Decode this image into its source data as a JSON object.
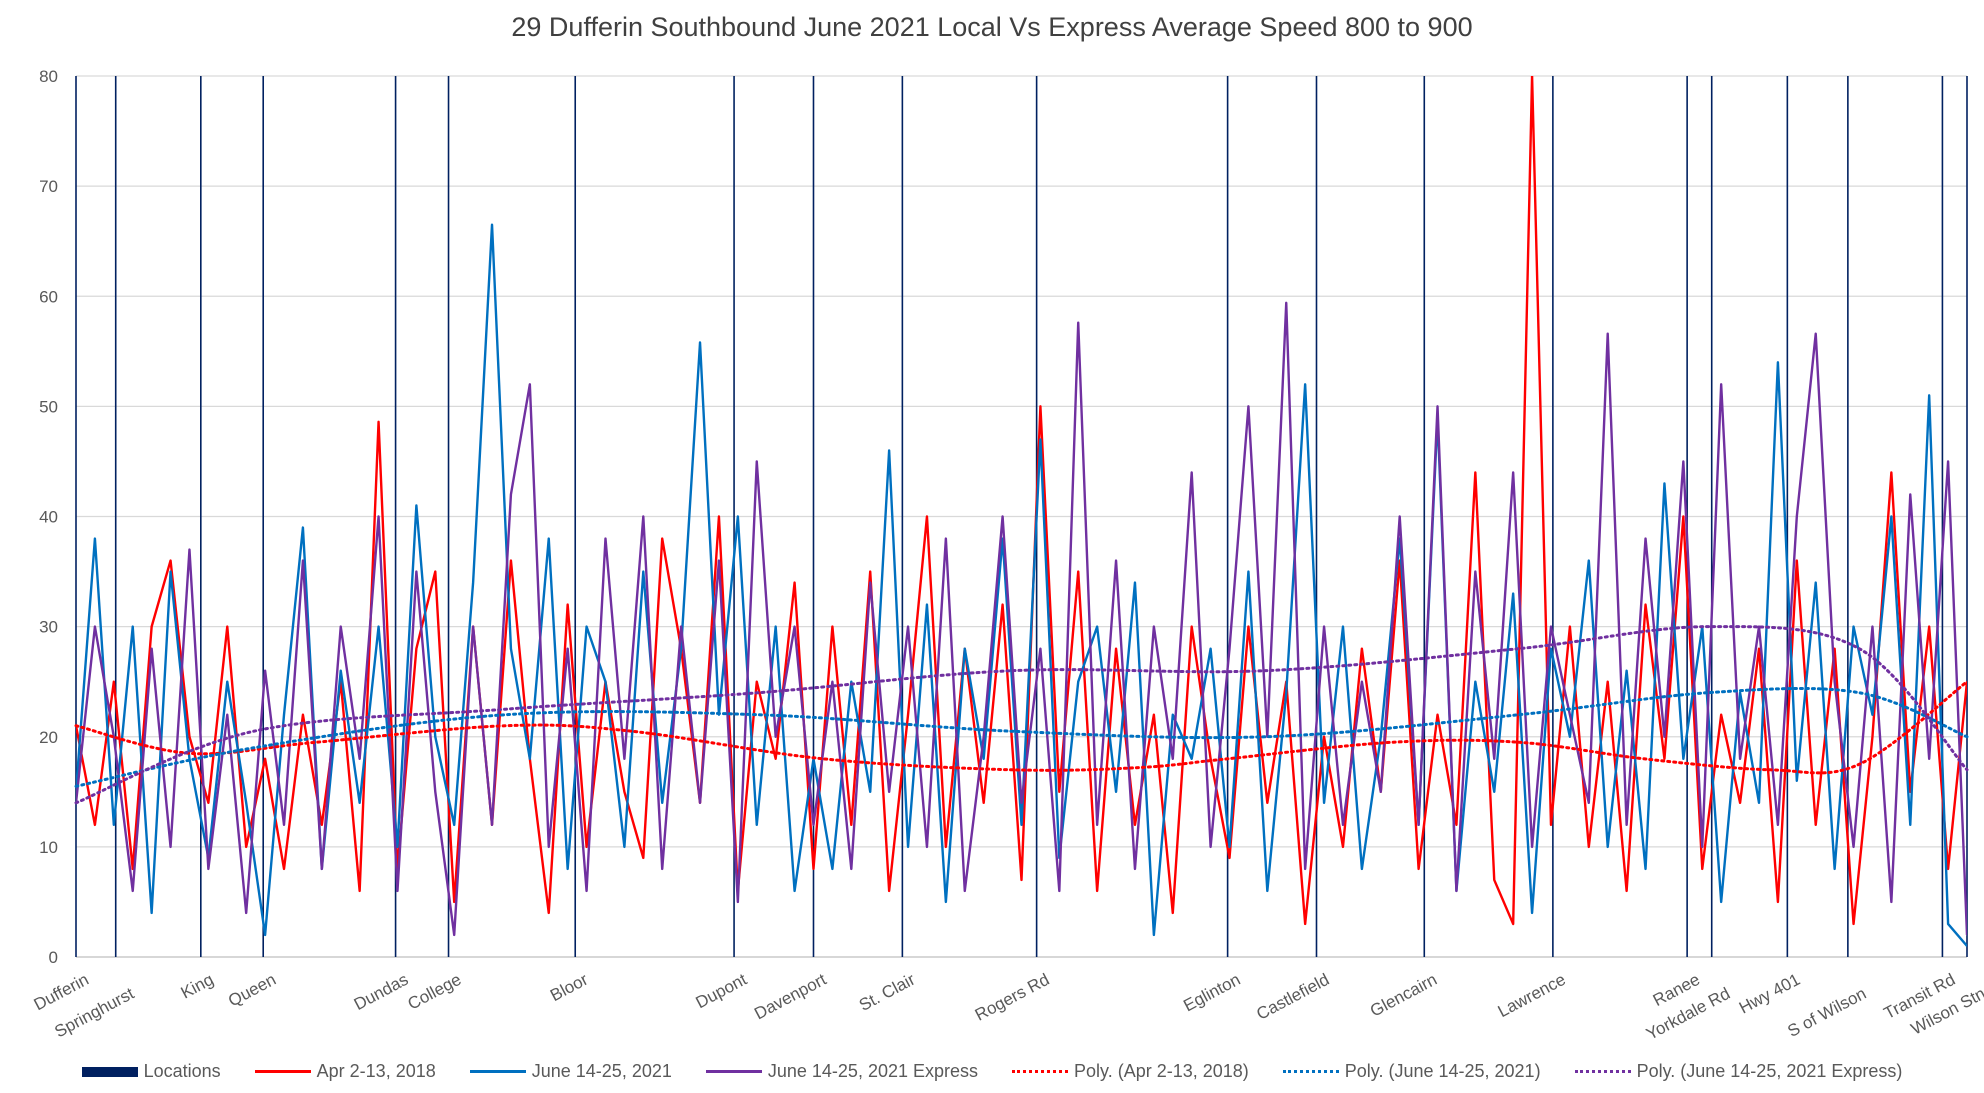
{
  "chart_data": {
    "type": "line",
    "title": "29 Dufferin Southbound June 2021 Local Vs Express Average Speed 800 to 900",
    "xlabel": "",
    "ylabel": "",
    "xlim": [
      0,
      1000
    ],
    "ylim": [
      0,
      80
    ],
    "yticks": [
      0,
      10,
      20,
      30,
      40,
      50,
      60,
      70,
      80
    ],
    "grid": true,
    "legend_position": "bottom",
    "locations": [
      {
        "label": "Dufferin",
        "x": 0
      },
      {
        "label": "Springhurst",
        "x": 21
      },
      {
        "label": "King",
        "x": 66
      },
      {
        "label": "Queen",
        "x": 99
      },
      {
        "label": "Dundas",
        "x": 169
      },
      {
        "label": "College",
        "x": 197
      },
      {
        "label": "Bloor",
        "x": 264
      },
      {
        "label": "Dupont",
        "x": 348
      },
      {
        "label": "Davenport",
        "x": 390
      },
      {
        "label": "St. Clair",
        "x": 437
      },
      {
        "label": "Rogers Rd",
        "x": 508
      },
      {
        "label": "Eglinton",
        "x": 609
      },
      {
        "label": "Castlefield",
        "x": 656
      },
      {
        "label": "Glencairn",
        "x": 713
      },
      {
        "label": "Lawrence",
        "x": 781
      },
      {
        "label": "Ranee",
        "x": 852
      },
      {
        "label": "Yorkdale Rd",
        "x": 865
      },
      {
        "label": "Hwy 401",
        "x": 905
      },
      {
        "label": "S of Wilson",
        "x": 937
      },
      {
        "label": "Transit Rd",
        "x": 987
      },
      {
        "label": "Wilson Stn",
        "x": 1000
      }
    ],
    "x_step": 10,
    "series": [
      {
        "name": "Apr 2-13, 2018",
        "color": "#ff0000",
        "values": [
          21,
          12,
          25,
          8,
          30,
          36,
          20,
          14,
          30,
          10,
          18,
          8,
          22,
          12,
          25,
          6,
          48.6,
          8,
          28,
          35,
          5,
          30,
          12,
          36,
          18,
          4,
          32,
          10,
          25,
          15,
          9,
          38,
          28,
          14,
          40,
          6,
          25,
          18,
          34,
          8,
          30,
          12,
          35,
          6,
          22,
          40,
          10,
          28,
          14,
          32,
          7,
          50,
          15,
          35,
          6,
          28,
          12,
          22,
          4,
          30,
          18,
          9,
          30,
          14,
          25,
          3,
          20,
          10,
          28,
          15,
          36,
          8,
          22,
          12,
          44,
          7,
          3,
          80,
          12,
          30,
          10,
          25,
          6,
          32,
          18,
          40,
          8,
          22,
          14,
          28,
          5,
          36,
          12,
          28,
          3,
          20,
          44,
          15,
          30,
          8,
          25
        ]
      },
      {
        "name": "June 14-25, 2021",
        "color": "#0070c0",
        "values": [
          15,
          38,
          12,
          30,
          4,
          35,
          18,
          9,
          25,
          14,
          2,
          22,
          39,
          8,
          26,
          14,
          30,
          10,
          41,
          20,
          12,
          34,
          66.5,
          28,
          18,
          38,
          8,
          30,
          25,
          10,
          35,
          14,
          28,
          55.8,
          22,
          40,
          12,
          30,
          6,
          18,
          8,
          25,
          15,
          46,
          10,
          32,
          5,
          28,
          18,
          38,
          12,
          47,
          9,
          25,
          30,
          15,
          34,
          2,
          22,
          18,
          28,
          10,
          35,
          6,
          24,
          52,
          14,
          30,
          8,
          20,
          38,
          12,
          49,
          6,
          25,
          15,
          33,
          4,
          28,
          20,
          36,
          10,
          26,
          8,
          43,
          18,
          30,
          5,
          24,
          14,
          54,
          16,
          34,
          8,
          30,
          22,
          40,
          12,
          51,
          3,
          1
        ]
      },
      {
        "name": "June 14-25, 2021 Express",
        "color": "#7030a0",
        "values": [
          14,
          30,
          20,
          6,
          28,
          10,
          37,
          8,
          22,
          4,
          26,
          12,
          36,
          8,
          30,
          18,
          40,
          6,
          35,
          15,
          2,
          30,
          12,
          42,
          52,
          10,
          28,
          6,
          38,
          18,
          40,
          8,
          30,
          14,
          36,
          5,
          45,
          20,
          30,
          12,
          25,
          8,
          34,
          15,
          30,
          10,
          38,
          6,
          20,
          40,
          14,
          28,
          6,
          57.6,
          12,
          36,
          8,
          30,
          18,
          44,
          10,
          28,
          50,
          20,
          59.4,
          8,
          30,
          12,
          25,
          15,
          40,
          12,
          50,
          6,
          35,
          18,
          44,
          10,
          30,
          22,
          14,
          56.6,
          12,
          38,
          20,
          45,
          10,
          52,
          18,
          30,
          12,
          40,
          56.6,
          25,
          10,
          30,
          5,
          42,
          18,
          45,
          2
        ]
      }
    ],
    "trendlines": [
      {
        "name": "Poly. (Apr 2-13, 2018)",
        "color": "#ff0000",
        "points": [
          [
            0,
            21
          ],
          [
            60,
            18.5
          ],
          [
            127,
            19.5
          ],
          [
            227,
            21
          ],
          [
            294,
            20.5
          ],
          [
            395,
            18
          ],
          [
            495,
            17
          ],
          [
            562,
            17.2
          ],
          [
            609,
            18
          ],
          [
            696,
            19.5
          ],
          [
            763,
            19.5
          ],
          [
            829,
            18
          ],
          [
            896,
            17
          ],
          [
            943,
            17.5
          ],
          [
            1000,
            25
          ]
        ]
      },
      {
        "name": "Poly. (June 14-25, 2021)",
        "color": "#0070c0",
        "points": [
          [
            0,
            15.5
          ],
          [
            94,
            19
          ],
          [
            227,
            22
          ],
          [
            361,
            22
          ],
          [
            495,
            20.5
          ],
          [
            629,
            20
          ],
          [
            763,
            22
          ],
          [
            863,
            24
          ],
          [
            943,
            24
          ],
          [
            1000,
            20
          ]
        ]
      },
      {
        "name": "Poly. (June 14-25, 2021 Express)",
        "color": "#7030a0",
        "points": [
          [
            0,
            14
          ],
          [
            94,
            20.5
          ],
          [
            227,
            22.5
          ],
          [
            361,
            24
          ],
          [
            495,
            26
          ],
          [
            629,
            26
          ],
          [
            763,
            28
          ],
          [
            863,
            30
          ],
          [
            943,
            28
          ],
          [
            1000,
            17
          ]
        ]
      }
    ],
    "legend": [
      "Locations",
      "Apr 2-13, 2018",
      "June 14-25, 2021",
      "June 14-25, 2021 Express",
      "Poly. (Apr 2-13, 2018)",
      "Poly. (June 14-25, 2021)",
      "Poly. (June 14-25, 2021 Express)"
    ],
    "locations_color": "#002060"
  }
}
